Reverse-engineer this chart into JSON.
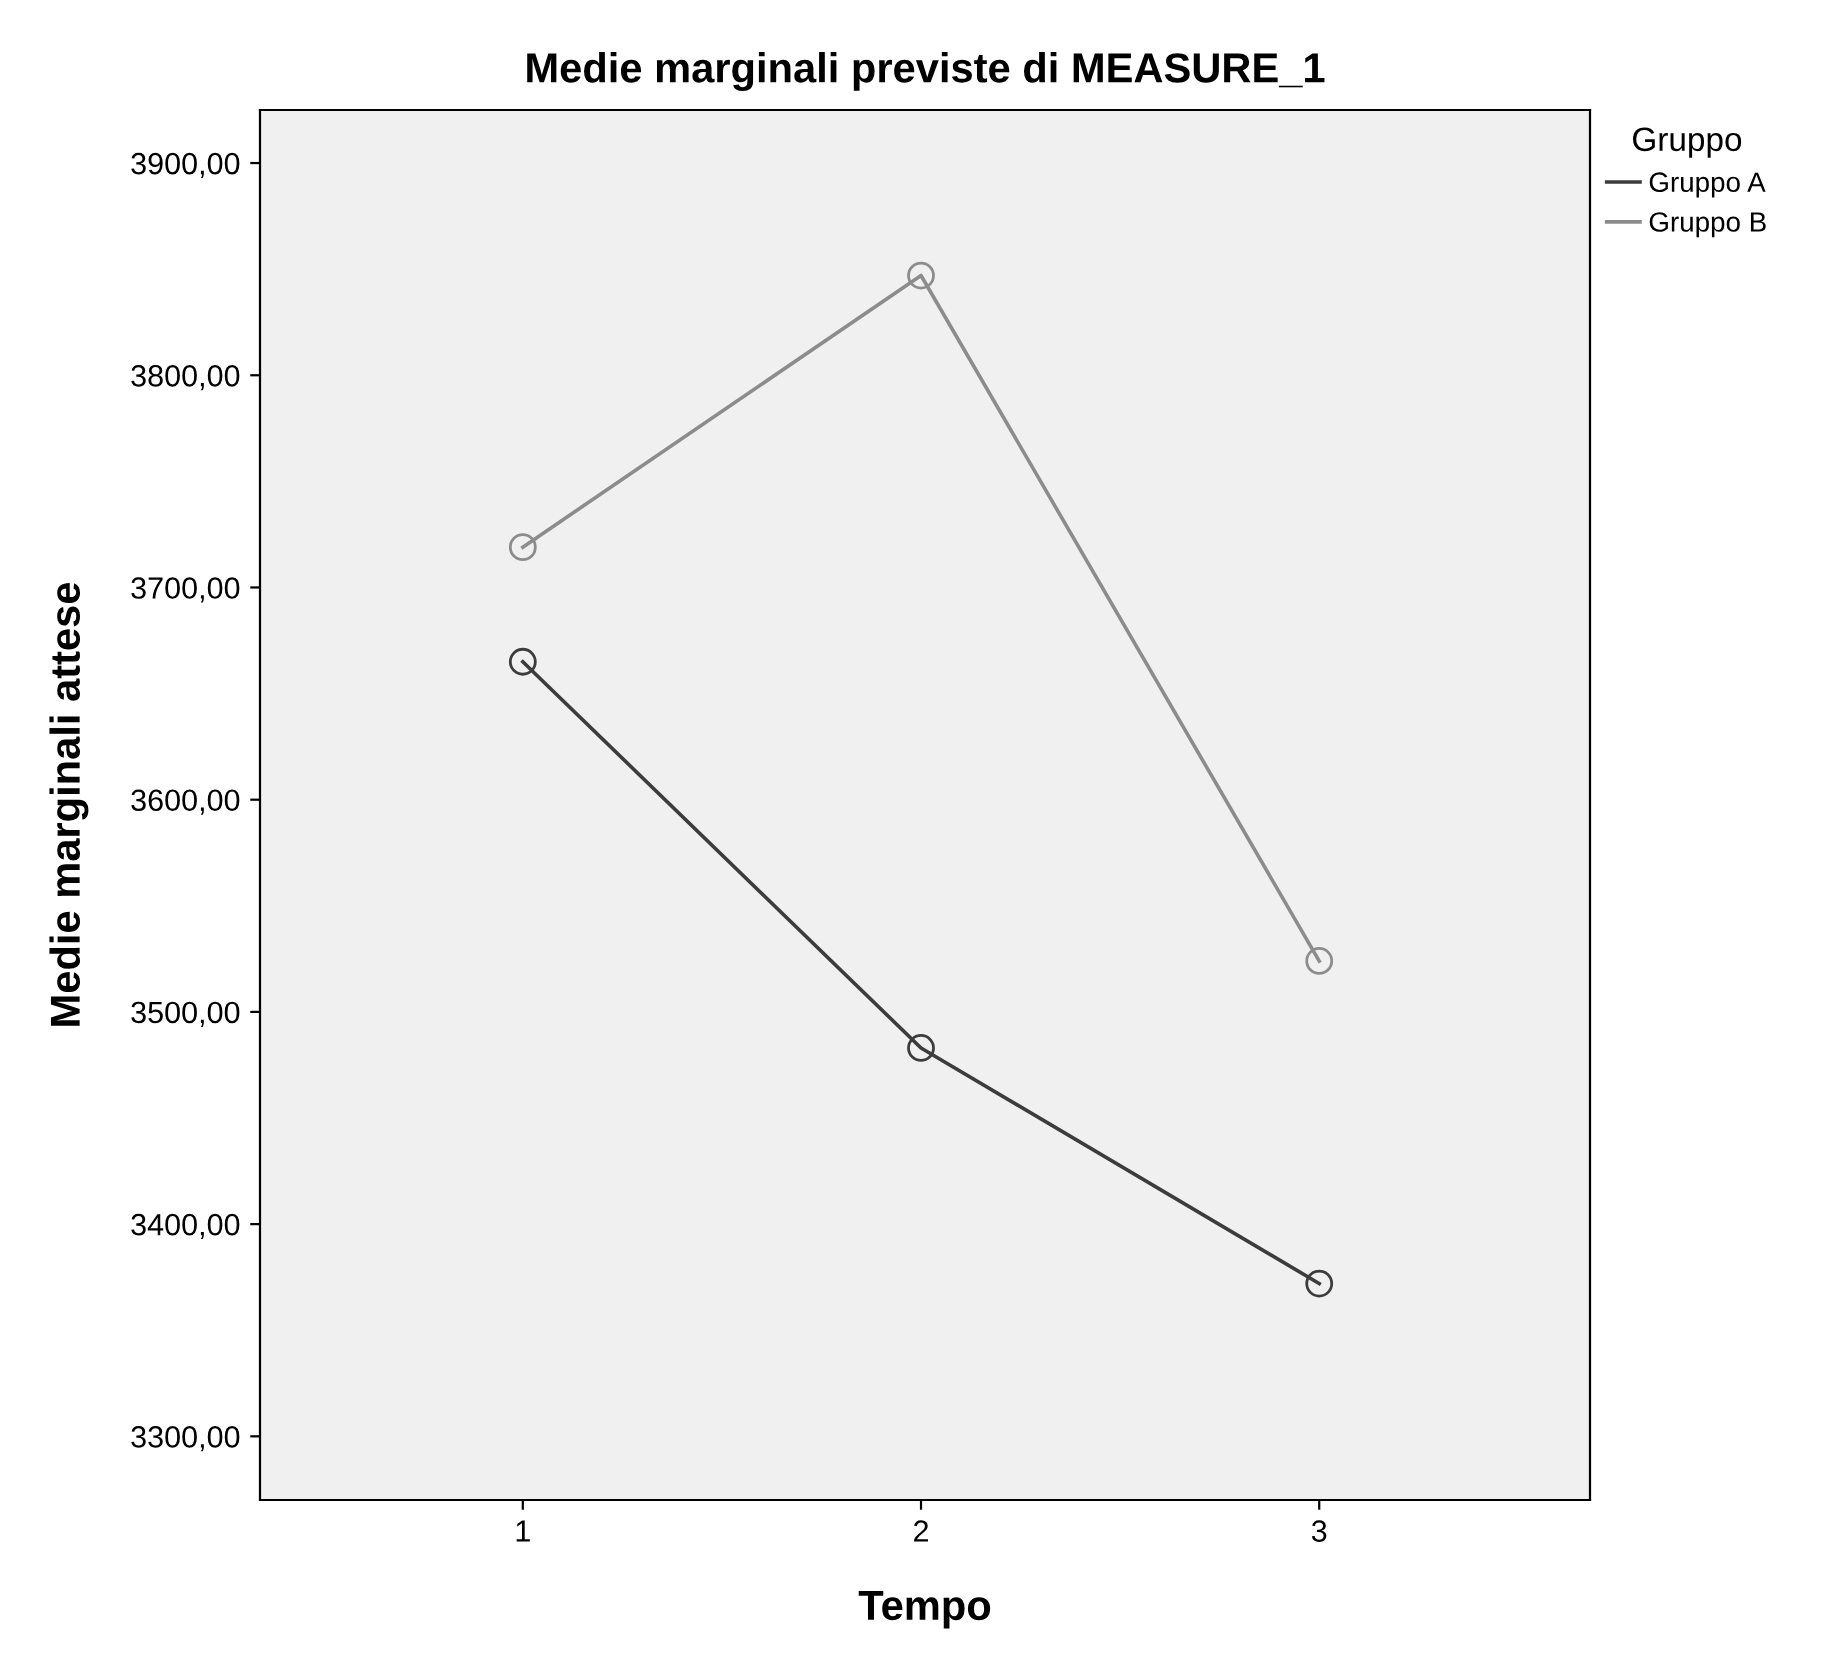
{
  "chart_data": {
    "type": "line",
    "title": "Medie marginali previste di MEASURE_1",
    "xlabel": "Tempo",
    "ylabel": "Medie marginali attese",
    "legend_title": "Gruppo",
    "categories": [
      "1",
      "2",
      "3"
    ],
    "series": [
      {
        "name": "Gruppo A",
        "color": "#3c3c3c",
        "values": [
          3665,
          3483,
          3372
        ]
      },
      {
        "name": "Gruppo B",
        "color": "#8c8c8c",
        "values": [
          3719,
          3847,
          3524
        ]
      }
    ],
    "ylim": [
      3270,
      3925
    ],
    "yticks": [
      {
        "value": 3300,
        "label": "3300,00"
      },
      {
        "value": 3400,
        "label": "3400,00"
      },
      {
        "value": 3500,
        "label": "3500,00"
      },
      {
        "value": 3600,
        "label": "3600,00"
      },
      {
        "value": 3700,
        "label": "3700,00"
      },
      {
        "value": 3800,
        "label": "3800,00"
      },
      {
        "value": 3900,
        "label": "3900,00"
      }
    ],
    "marker": "circle",
    "line_style": "solid",
    "legend": "top right",
    "grid": false
  }
}
